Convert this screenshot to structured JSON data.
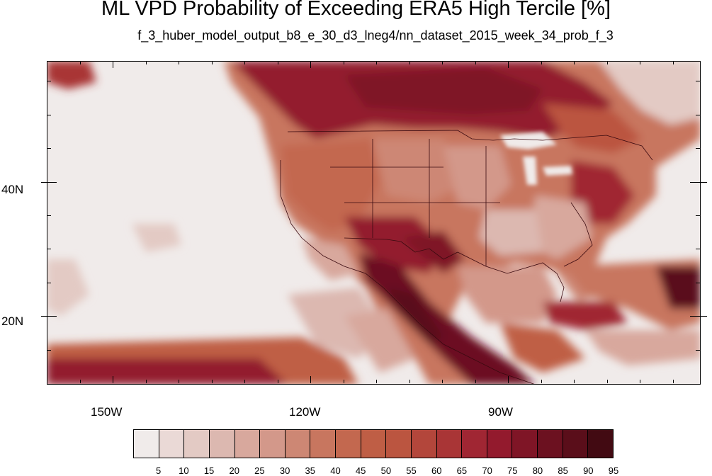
{
  "title": "ML VPD Probability of Exceeding ERA5 High Tercile [%]",
  "subtitle": "f_3_huber_model_output_b8_e_30_d3_lneg4/nn_dataset_2015_week_34_prob_f_3",
  "map": {
    "lat_labels": [
      "40N",
      "20N"
    ],
    "lon_labels": [
      "150W",
      "120W",
      "90W"
    ],
    "lon_range": [
      -160,
      -61
    ],
    "lat_range": [
      10,
      58
    ]
  },
  "colorbar": {
    "labels": [
      "5",
      "10",
      "15",
      "20",
      "25",
      "30",
      "35",
      "40",
      "45",
      "50",
      "55",
      "60",
      "65",
      "70",
      "75",
      "80",
      "85",
      "90",
      "95"
    ],
    "colors": [
      "#f0ebea",
      "#ead9d6",
      "#e3cac4",
      "#dcb8b0",
      "#d8a89d",
      "#d3988a",
      "#cd8774",
      "#c8765f",
      "#c3684f",
      "#bf5e45",
      "#bb5540",
      "#b3463b",
      "#a93536",
      "#a02633",
      "#931a2d",
      "#7f1526",
      "#6c1120",
      "#5a0e1a",
      "#420a12"
    ]
  }
}
